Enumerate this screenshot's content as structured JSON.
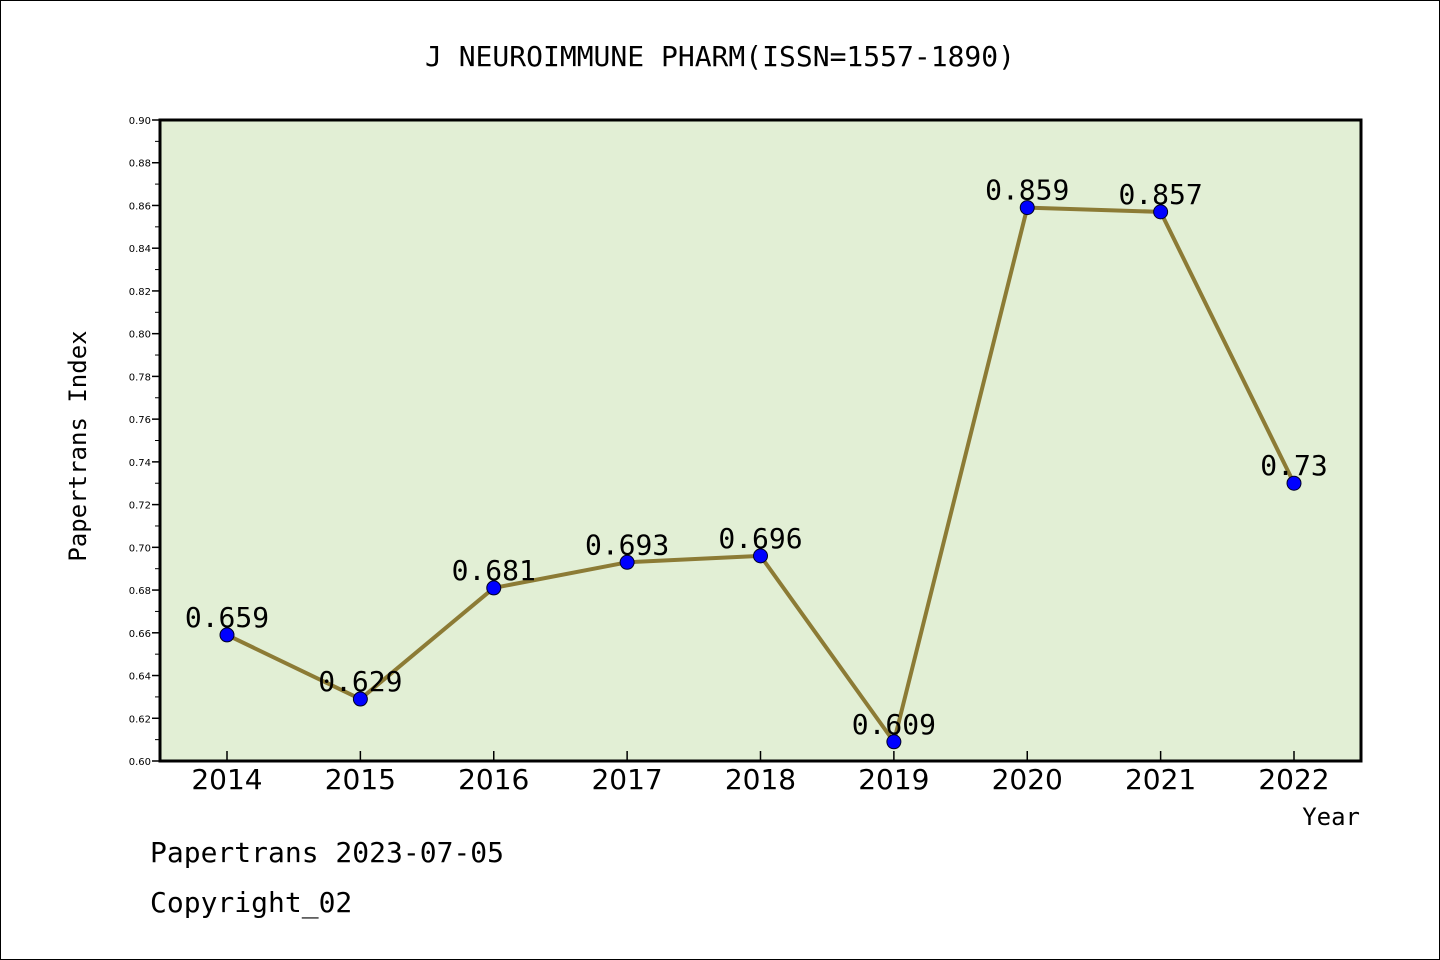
{
  "chart_data": {
    "type": "line",
    "title": "J NEUROIMMUNE PHARM(ISSN=1557-1890)",
    "xlabel": "Year",
    "ylabel": "Papertrans Index",
    "categories": [
      "2014",
      "2015",
      "2016",
      "2017",
      "2018",
      "2019",
      "2020",
      "2021",
      "2022"
    ],
    "series": [
      {
        "values": [
          0.659,
          0.629,
          0.681,
          0.693,
          0.696,
          0.609,
          0.859,
          0.857,
          0.73
        ],
        "labels": [
          "0.659",
          "0.629",
          "0.681",
          "0.693",
          "0.696",
          "0.609",
          "0.859",
          "0.857",
          "0.73"
        ]
      }
    ],
    "ylim": [
      0.6,
      0.9
    ],
    "yticks": [
      "0.60",
      "0.62",
      "0.64",
      "0.66",
      "0.68",
      "0.70",
      "0.72",
      "0.74",
      "0.76",
      "0.78",
      "0.80",
      "0.82",
      "0.84",
      "0.86",
      "0.88",
      "0.90"
    ],
    "grid": false,
    "colors": {
      "plot_background": "#e2efd5",
      "line": "#8c7b35",
      "marker": "#0000ff"
    }
  },
  "footer": {
    "date_text": "Papertrans 2023-07-05",
    "copyright_text": "Copyright_02"
  }
}
